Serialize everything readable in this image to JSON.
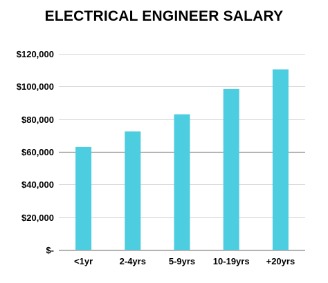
{
  "chart_data": {
    "type": "bar",
    "title": "ELECTRICAL ENGINEER SALARY",
    "xlabel": "",
    "ylabel": "",
    "categories": [
      "<1yr",
      "2-4yrs",
      "5-9yrs",
      "10-19yrs",
      "+20yrs"
    ],
    "values": [
      63000,
      72500,
      83000,
      98500,
      110500
    ],
    "ylim": [
      0,
      120000
    ],
    "yticks": [
      0,
      20000,
      40000,
      60000,
      80000,
      100000,
      120000
    ],
    "ytick_labels": [
      "$-",
      "$20,000",
      "$40,000",
      "$60,000",
      "$80,000",
      "$100,000",
      "$120,000"
    ],
    "grid": true,
    "legend": "none",
    "colors": {
      "bar": "#4dcde0",
      "grid": "#d4d4d4",
      "grid_strong": "#888888",
      "axis": "#888888"
    }
  }
}
